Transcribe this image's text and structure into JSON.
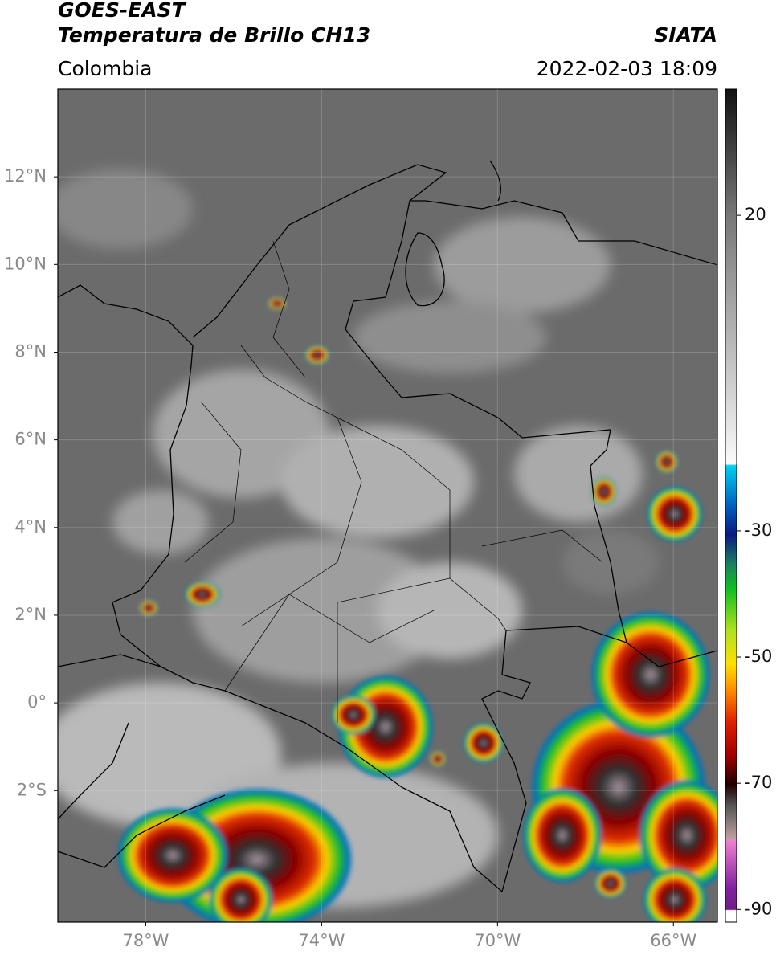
{
  "header": {
    "satellite": "GOES-EAST",
    "product": "Temperatura de Brillo CH13",
    "source": "SIATA",
    "region": "Colombia",
    "datetime": "2022-02-03 18:09"
  },
  "map": {
    "xlim": [
      -80,
      -65
    ],
    "ylim": [
      -5,
      14
    ],
    "xticks": [
      {
        "value": -78,
        "label": "78°W"
      },
      {
        "value": -74,
        "label": "74°W"
      },
      {
        "value": -70,
        "label": "70°W"
      },
      {
        "value": -66,
        "label": "66°W"
      }
    ],
    "yticks": [
      {
        "value": 12,
        "label": "12°N"
      },
      {
        "value": 10,
        "label": "10°N"
      },
      {
        "value": 8,
        "label": "8°N"
      },
      {
        "value": 6,
        "label": "6°N"
      },
      {
        "value": 4,
        "label": "4°N"
      },
      {
        "value": 2,
        "label": "2°N"
      },
      {
        "value": 0,
        "label": "0°"
      },
      {
        "value": -2,
        "label": "2°S"
      }
    ]
  },
  "colorbar": {
    "lim": [
      -92,
      40
    ],
    "ticks": [
      20,
      -30,
      -50,
      -70,
      -90
    ]
  }
}
